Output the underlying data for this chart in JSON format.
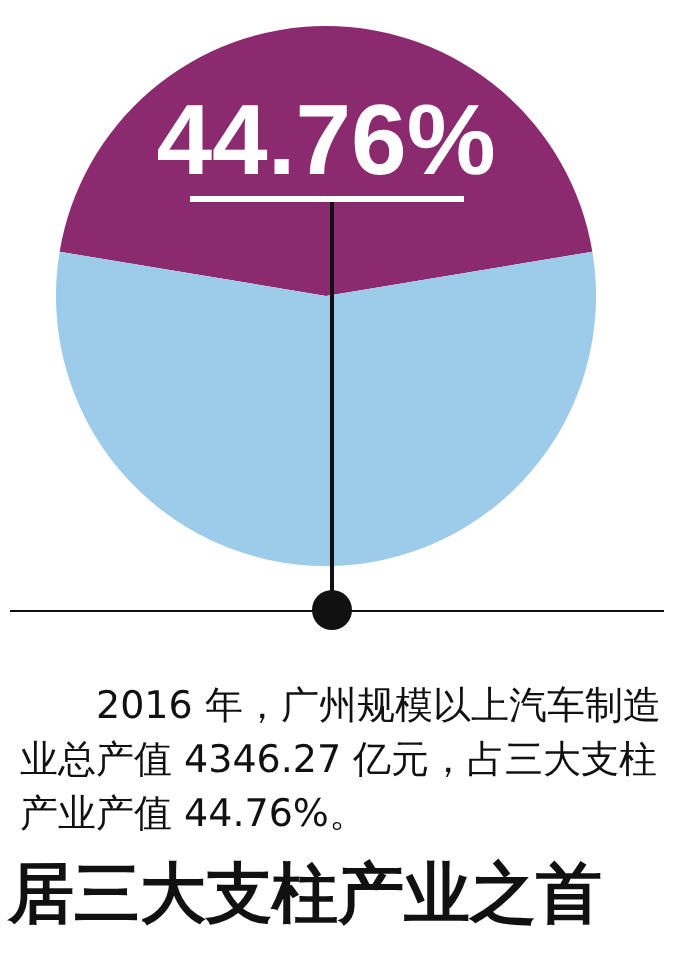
{
  "chart_data": {
    "type": "pie",
    "categories": [
      null,
      null
    ],
    "values": [
      44.76,
      55.24
    ],
    "colors": [
      "#8b2a6e",
      "#9dcbea"
    ],
    "value_labels": [
      "44.76%",
      null
    ],
    "legend": false,
    "annotations": [
      "2016 年，广州规模以上汽车制造业总产值 4346.27 亿元，占三大支柱产业产值 44.76%。",
      "居三大支柱产业之首"
    ]
  }
}
